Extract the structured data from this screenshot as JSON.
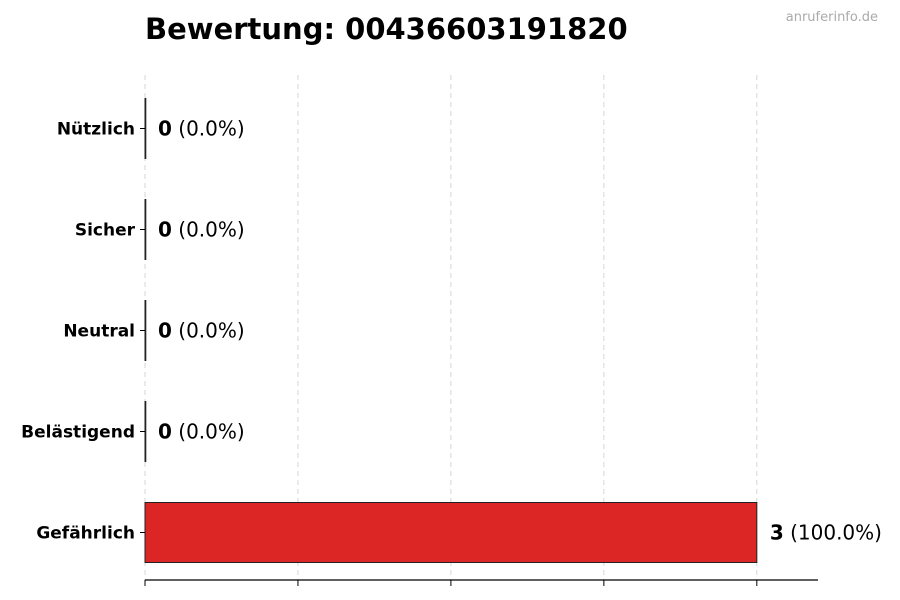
{
  "title": "Bewertung: 00436603191820",
  "watermark": "anruferinfo.de",
  "chart_data": {
    "type": "bar",
    "orientation": "horizontal",
    "title": "Bewertung: 00436603191820",
    "xlabel": "",
    "ylabel": "",
    "categories": [
      "Nützlich",
      "Sicher",
      "Neutral",
      "Belästigend",
      "Gefährlich"
    ],
    "values": [
      0,
      0,
      0,
      0,
      3
    ],
    "labels": [
      "(0.0%)",
      "(0.0%)",
      "(0.0%)",
      "(0.0%)",
      "(100.0%)"
    ],
    "colors": [
      "#4caf50",
      "#2196f3",
      "#9e9e9e",
      "#ff9800",
      "#dc2626"
    ],
    "xlim": [
      0,
      3.3
    ],
    "xticks": [
      0,
      0.75,
      1.5,
      2.25,
      3
    ],
    "grid": "x-dashed",
    "legend": "none"
  }
}
